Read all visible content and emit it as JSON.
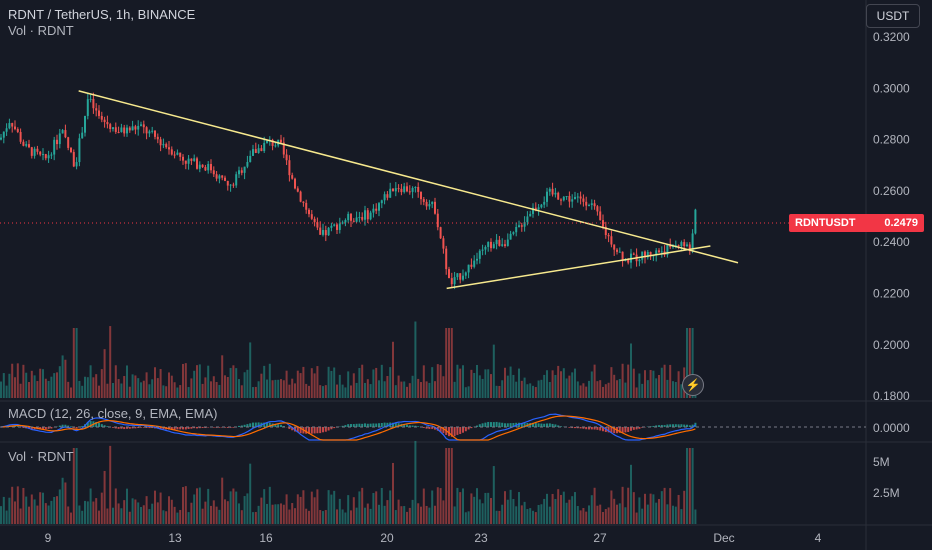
{
  "header": {
    "title": "RDNT / TetherUS, 1h, BINANCE",
    "sub": "Vol · RDNT"
  },
  "currency_button": "USDT",
  "price_tag": {
    "symbol": "RDNTUSDT",
    "price": "0.2479",
    "color": "#f23645"
  },
  "panes": {
    "macd_label": "MACD (12, 26, close, 9, EMA, EMA)",
    "macd_value": "0.0000",
    "volume_label": "Vol · RDNT",
    "vol_ticks": [
      "5M",
      "2.5M"
    ]
  },
  "icons": {
    "bolt": "lightning-icon"
  },
  "colors": {
    "up": "#26a69a",
    "down": "#ef5350",
    "trendline": "#f7e98e",
    "macd": "#2962ff",
    "signal": "#ff6d00",
    "background": "#161a25"
  },
  "chart_data": {
    "type": "candlestick",
    "price_ticks": [
      "0.3200",
      "0.3000",
      "0.2800",
      "0.2600",
      "0.2400",
      "0.2200",
      "0.2000",
      "0.1800"
    ],
    "x_ticks": [
      "9",
      "13",
      "16",
      "20",
      "23",
      "27",
      "Dec",
      "4"
    ],
    "last_price": 0.2479,
    "trendlines": [
      {
        "name": "upper",
        "from": [
          10,
          0.299
        ],
        "to": [
          31.5,
          0.232
        ]
      },
      {
        "name": "lower",
        "from": [
          22,
          0.222
        ],
        "to": [
          30.6,
          0.2385
        ]
      }
    ]
  }
}
